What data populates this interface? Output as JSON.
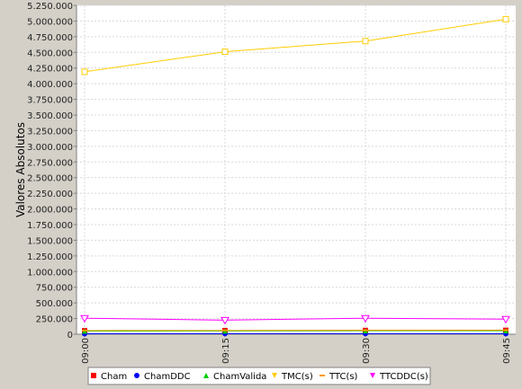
{
  "chart_data": {
    "type": "line",
    "title": "",
    "xlabel": "",
    "ylabel": "Valores Absolutos",
    "categories": [
      "09:00",
      "09:15",
      "09:30",
      "09:45"
    ],
    "ylim": [
      0,
      5250000
    ],
    "y_ticks": [
      0,
      250000,
      500000,
      750000,
      1000000,
      1250000,
      1500000,
      1750000,
      2000000,
      2250000,
      2500000,
      2750000,
      3000000,
      3250000,
      3500000,
      3750000,
      4000000,
      4250000,
      4500000,
      4750000,
      5000000,
      5250000
    ],
    "y_tick_labels": [
      "0",
      "250.000",
      "500.000",
      "750.000",
      "1.000.000",
      "1.250.000",
      "1.500.000",
      "1.750.000",
      "2.000.000",
      "2.250.000",
      "2.500.000",
      "2.750.000",
      "3.000.000",
      "3.250.000",
      "3.500.000",
      "3.750.000",
      "4.000.000",
      "4.250.000",
      "4.500.000",
      "4.750.000",
      "5.000.000",
      "5.250.000"
    ],
    "grid": true,
    "legend_position": "bottom",
    "series": [
      {
        "name": "Cham",
        "color": "#ff0000",
        "marker": "square",
        "values": [
          55000,
          58000,
          60000,
          62000
        ]
      },
      {
        "name": "ChamDDC",
        "color": "#0000ff",
        "marker": "circle",
        "values": [
          8000,
          9000,
          9000,
          9000
        ]
      },
      {
        "name": "ChamValida",
        "color": "#00cc00",
        "marker": "triangle-up",
        "values": [
          50000,
          52000,
          55000,
          56000
        ]
      },
      {
        "name": "TMC(s)",
        "color": "#ffcc00",
        "marker": "triangle-right",
        "values": [
          4190000,
          4510000,
          4680000,
          5030000
        ]
      },
      {
        "name": "TTC(s)",
        "color": "#ff9900",
        "marker": "dash",
        "values": [
          58000,
          60000,
          62000,
          64000
        ]
      },
      {
        "name": "TTCDDC(s)",
        "color": "#ff00ff",
        "marker": "triangle-down",
        "values": [
          255000,
          225000,
          255000,
          240000
        ]
      }
    ]
  }
}
